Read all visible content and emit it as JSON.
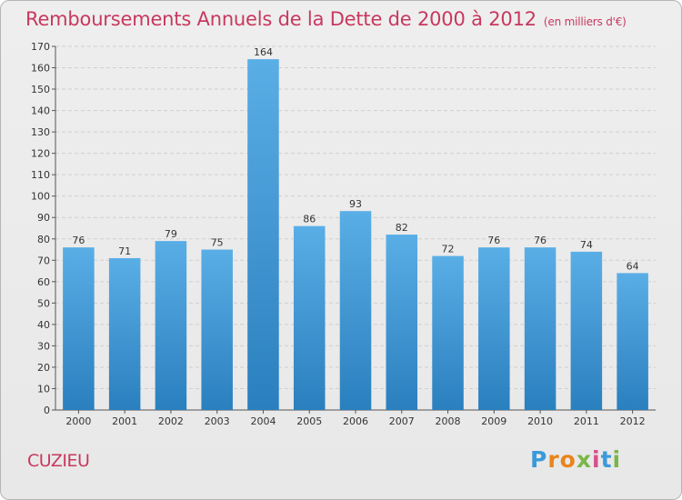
{
  "header": {
    "title": "Remboursements Annuels de la Dette de 2000 à 2012",
    "subtitle": "(en milliers d'€)"
  },
  "footer": {
    "commune": "CUZIEU",
    "logo_letters": [
      "P",
      "r",
      "o",
      "x",
      "i",
      "t",
      "i"
    ],
    "logo_colors": [
      "#3a9ad9",
      "#e9851c",
      "#e9851c",
      "#7ab648",
      "#d94f8a",
      "#3a9ad9",
      "#7ab648"
    ]
  },
  "colors": {
    "title": "#c8385f",
    "bar_top": "#5aaee6",
    "bar_bottom": "#2a7fbe",
    "grid": "#cfcfcf"
  },
  "chart_data": {
    "type": "bar",
    "title": "Remboursements Annuels de la Dette de 2000 à 2012",
    "unit": "(en milliers d'€)",
    "categories": [
      "2000",
      "2001",
      "2002",
      "2003",
      "2004",
      "2005",
      "2006",
      "2007",
      "2008",
      "2009",
      "2010",
      "2011",
      "2012"
    ],
    "values": [
      76,
      71,
      79,
      75,
      164,
      86,
      93,
      82,
      72,
      76,
      76,
      74,
      64
    ],
    "ylim": [
      0,
      170
    ],
    "yticks": [
      0,
      10,
      20,
      30,
      40,
      50,
      60,
      70,
      80,
      90,
      100,
      110,
      120,
      130,
      140,
      150,
      160,
      170
    ],
    "grid": true,
    "legend": "none"
  }
}
